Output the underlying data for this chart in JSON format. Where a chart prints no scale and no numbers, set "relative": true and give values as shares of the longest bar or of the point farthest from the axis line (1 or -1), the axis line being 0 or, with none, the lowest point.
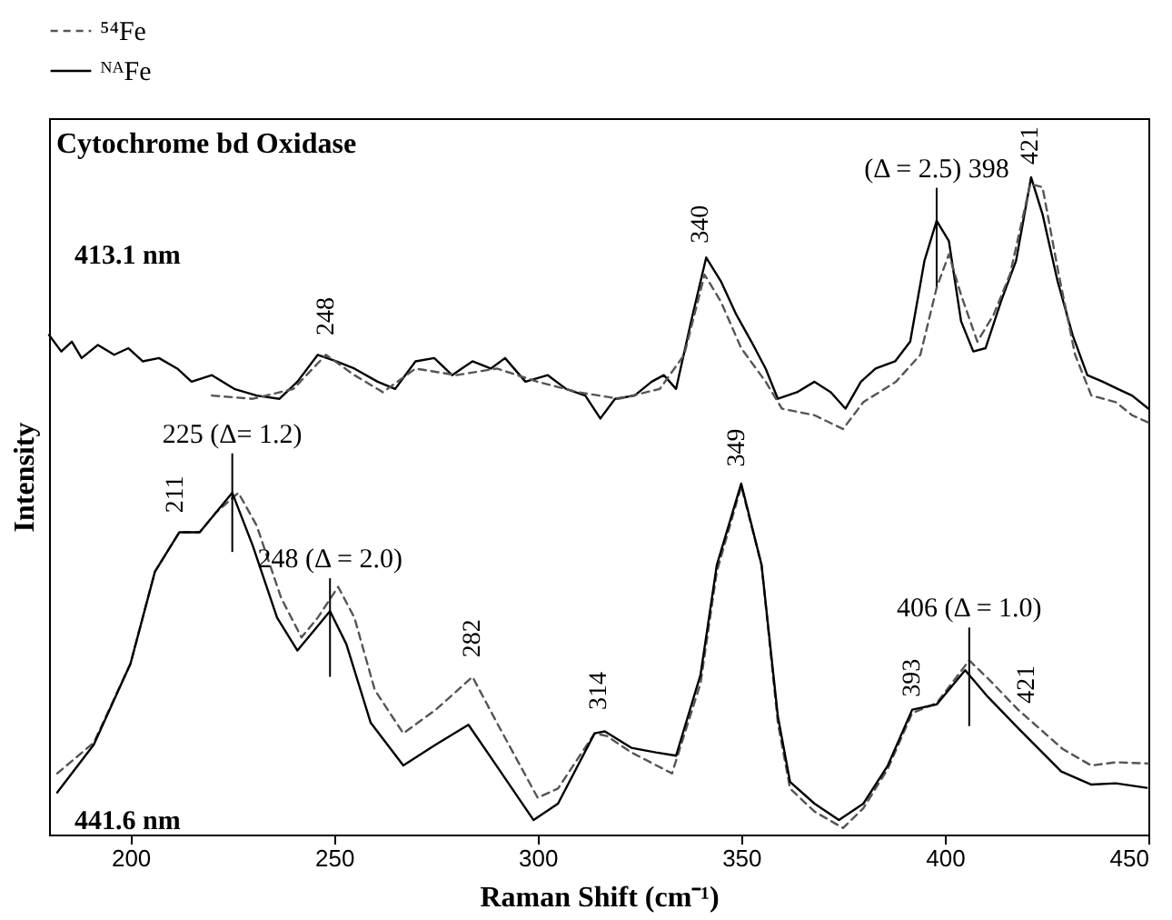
{
  "chart_data": {
    "type": "line",
    "relative": true,
    "title": "Cytochrome bd Oxidase",
    "xlabel": "Raman Shift (cm⁻¹)",
    "ylabel": "Intensity",
    "xlim": [
      180,
      450
    ],
    "xticks": [
      200,
      250,
      300,
      350,
      400,
      450
    ],
    "grid": false,
    "legend": "top",
    "marker": "none",
    "series": [
      {
        "color": "#000000",
        "line_style": "solid",
        "x": [
          180,
          183,
          185.6,
          188,
          192,
          196,
          199.5,
          203,
          207,
          211.5,
          215,
          220,
          225.5,
          231,
          236.6,
          241,
          246,
          250.5,
          255,
          260.7,
          265,
          270,
          274.6,
          279,
          284,
          288.5,
          292,
          297,
          302.5,
          307,
          311.7,
          315.4,
          319,
          323.8,
          328,
          331,
          334,
          337.7,
          341.4,
          345,
          348.8,
          352.5,
          356,
          359,
          363.7,
          368,
          372,
          375.6,
          379.4,
          383,
          387.8,
          391.5,
          395,
          398,
          401,
          404,
          407,
          410,
          413.8,
          417.5,
          421.2,
          424,
          427.7,
          431.4,
          435,
          438.8,
          442.5,
          446,
          450
        ],
        "values": [
          0.76,
          0.735,
          0.75,
          0.725,
          0.745,
          0.73,
          0.74,
          0.72,
          0.725,
          0.709,
          0.689,
          0.699,
          0.678,
          0.668,
          0.663,
          0.689,
          0.73,
          0.72,
          0.709,
          0.689,
          0.678,
          0.72,
          0.725,
          0.699,
          0.72,
          0.709,
          0.725,
          0.689,
          0.699,
          0.678,
          0.668,
          0.633,
          0.663,
          0.668,
          0.689,
          0.699,
          0.678,
          0.781,
          0.878,
          0.842,
          0.791,
          0.75,
          0.709,
          0.663,
          0.673,
          0.689,
          0.673,
          0.648,
          0.689,
          0.709,
          0.72,
          0.75,
          0.873,
          0.934,
          0.903,
          0.781,
          0.735,
          0.74,
          0.811,
          0.873,
          1.0,
          0.944,
          0.842,
          0.76,
          0.699,
          0.689,
          0.678,
          0.668,
          0.648
        ]
      },
      {
        "color": "#555555",
        "line_style": "dashed",
        "x": [
          220,
          230,
          240,
          248,
          255,
          262,
          270,
          280,
          290,
          300,
          310,
          320,
          330,
          336,
          341,
          345,
          350,
          356,
          360,
          368,
          375,
          380,
          388,
          394,
          398,
          401,
          404,
          408,
          412,
          416,
          421,
          424,
          428,
          432,
          436,
          442,
          446,
          450
        ],
        "values": [
          0.668,
          0.663,
          0.678,
          0.73,
          0.699,
          0.673,
          0.709,
          0.699,
          0.709,
          0.689,
          0.673,
          0.663,
          0.678,
          0.73,
          0.852,
          0.811,
          0.74,
          0.689,
          0.648,
          0.638,
          0.617,
          0.658,
          0.689,
          0.73,
          0.832,
          0.883,
          0.821,
          0.75,
          0.791,
          0.852,
          0.99,
          0.985,
          0.852,
          0.73,
          0.668,
          0.658,
          0.638,
          0.627
        ]
      },
      {
        "name": "⁵⁴Fe",
        "color": "#555555",
        "line_style": "dashed",
        "x": [
          182,
          191,
          200,
          206,
          212,
          217,
          221,
          226.5,
          231,
          237,
          242,
          246,
          251,
          255,
          260,
          267,
          275,
          284,
          290,
          300,
          305,
          314,
          317,
          323,
          333,
          340,
          344,
          350,
          355,
          359,
          362,
          368,
          375,
          380,
          386,
          392,
          398,
          406,
          411,
          418,
          429,
          436,
          442,
          450
        ],
        "values": [
          0.093,
          0.14,
          0.26,
          0.4,
          0.46,
          0.46,
          0.49,
          0.52,
          0.47,
          0.36,
          0.3,
          0.33,
          0.377,
          0.33,
          0.22,
          0.154,
          0.19,
          0.24,
          0.17,
          0.056,
          0.07,
          0.154,
          0.15,
          0.125,
          0.093,
          0.23,
          0.4,
          0.53,
          0.41,
          0.17,
          0.07,
          0.035,
          0.01,
          0.04,
          0.1,
          0.185,
          0.2,
          0.265,
          0.235,
          0.19,
          0.13,
          0.105,
          0.11,
          0.108
        ]
      },
      {
        "name": "ᴺᴬFe",
        "color": "#000000",
        "line_style": "solid",
        "x": [
          182,
          191,
          200,
          206,
          212,
          217,
          221,
          225,
          230,
          236,
          241,
          245,
          249,
          253,
          259,
          267,
          275,
          283,
          289,
          299,
          305,
          314,
          316.5,
          323,
          329,
          334,
          340,
          344,
          350,
          355,
          359,
          362,
          368,
          374,
          380,
          386,
          392,
          398,
          405,
          410.5,
          418,
          428.6,
          436,
          442,
          449.6
        ],
        "values": [
          0.064,
          0.137,
          0.26,
          0.4,
          0.46,
          0.46,
          0.49,
          0.52,
          0.44,
          0.33,
          0.28,
          0.31,
          0.34,
          0.29,
          0.17,
          0.105,
          0.137,
          0.167,
          0.113,
          0.022,
          0.047,
          0.154,
          0.157,
          0.132,
          0.125,
          0.12,
          0.243,
          0.41,
          0.534,
          0.41,
          0.18,
          0.08,
          0.047,
          0.022,
          0.047,
          0.105,
          0.19,
          0.198,
          0.25,
          0.21,
          0.162,
          0.096,
          0.076,
          0.078,
          0.071
        ]
      }
    ],
    "annotations": [
      "413.1 nm",
      "441.6 nm",
      {
        "text": "248",
        "x": 248,
        "y": 0.74
      },
      {
        "text": "340",
        "x": 340,
        "y": 0.88
      },
      {
        "text": "(Δ = 2.5) 398",
        "x": 398,
        "y": 0.934
      },
      {
        "text": "421",
        "x": 421,
        "y": 1.0
      },
      {
        "text": "211",
        "x": 211,
        "y": 0.47
      },
      {
        "text": "225 (Δ= 1.2)",
        "x": 225,
        "y": 0.53
      },
      {
        "text": "248 (Δ = 2.0)",
        "x": 249,
        "y": 0.34
      },
      {
        "text": "282",
        "x": 284,
        "y": 0.25
      },
      {
        "text": "314",
        "x": 315,
        "y": 0.17
      },
      {
        "text": "349",
        "x": 349,
        "y": 0.54
      },
      {
        "text": "393",
        "x": 392,
        "y": 0.19
      },
      {
        "text": "406 (Δ = 1.0)",
        "x": 406,
        "y": 0.265
      },
      {
        "text": "421",
        "x": 420,
        "y": 0.18
      }
    ]
  }
}
